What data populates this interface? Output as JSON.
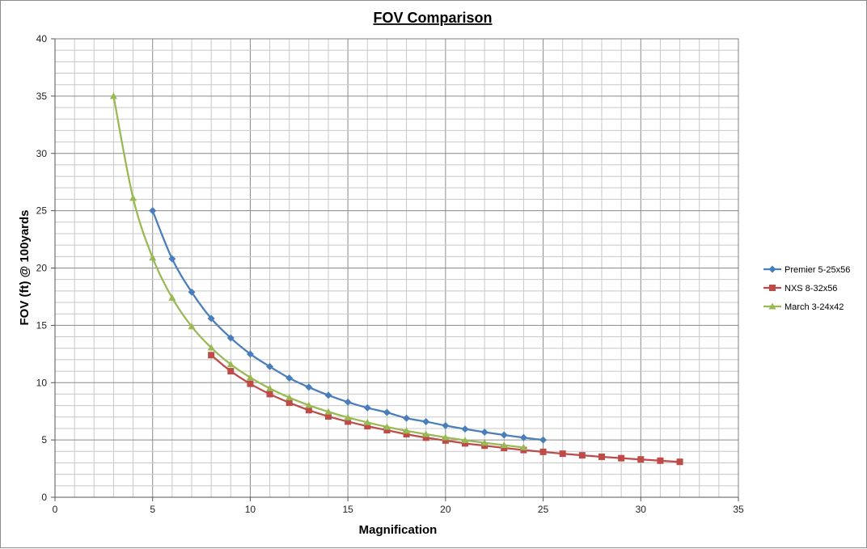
{
  "chart_data": {
    "type": "line",
    "title": "FOV Comparison",
    "xlabel": "Magnification",
    "ylabel": "FOV (ft) @ 100yards",
    "xlim": [
      0,
      35
    ],
    "ylim": [
      0,
      40
    ],
    "x_ticks": [
      0,
      5,
      10,
      15,
      20,
      25,
      30,
      35
    ],
    "y_ticks": [
      0,
      5,
      10,
      15,
      20,
      25,
      30,
      35,
      40
    ],
    "grid": true,
    "legend_position": "right",
    "series": [
      {
        "name": "Premier 5-25x56",
        "color": "#4a7ebb",
        "marker": "diamond",
        "x": [
          5,
          6,
          7,
          8,
          9,
          10,
          11,
          12,
          13,
          14,
          15,
          16,
          17,
          18,
          19,
          20,
          21,
          22,
          23,
          24,
          25
        ],
        "y": [
          25.0,
          20.8,
          17.9,
          15.6,
          13.9,
          12.5,
          11.4,
          10.4,
          9.6,
          8.9,
          8.3,
          7.8,
          7.4,
          6.9,
          6.6,
          6.25,
          5.95,
          5.68,
          5.43,
          5.2,
          5.0
        ]
      },
      {
        "name": "NXS 8-32x56",
        "color": "#be4b48",
        "marker": "square",
        "x": [
          8,
          9,
          10,
          11,
          12,
          13,
          14,
          15,
          16,
          17,
          18,
          19,
          20,
          21,
          22,
          23,
          24,
          25,
          26,
          27,
          28,
          29,
          30,
          31,
          32
        ],
        "y": [
          12.4,
          11.0,
          9.9,
          9.0,
          8.25,
          7.6,
          7.05,
          6.6,
          6.2,
          5.85,
          5.5,
          5.2,
          4.95,
          4.7,
          4.5,
          4.3,
          4.12,
          3.96,
          3.8,
          3.66,
          3.53,
          3.41,
          3.3,
          3.19,
          3.09
        ]
      },
      {
        "name": "March 3-24x42",
        "color": "#98b954",
        "marker": "triangle",
        "x": [
          3,
          4,
          5,
          6,
          7,
          8,
          9,
          10,
          11,
          12,
          13,
          14,
          15,
          16,
          17,
          18,
          19,
          20,
          21,
          22,
          23,
          24
        ],
        "y": [
          35.0,
          26.1,
          20.9,
          17.4,
          14.9,
          13.05,
          11.6,
          10.45,
          9.5,
          8.7,
          8.03,
          7.46,
          6.96,
          6.53,
          6.14,
          5.8,
          5.5,
          5.22,
          4.97,
          4.75,
          4.54,
          4.35
        ]
      }
    ]
  }
}
